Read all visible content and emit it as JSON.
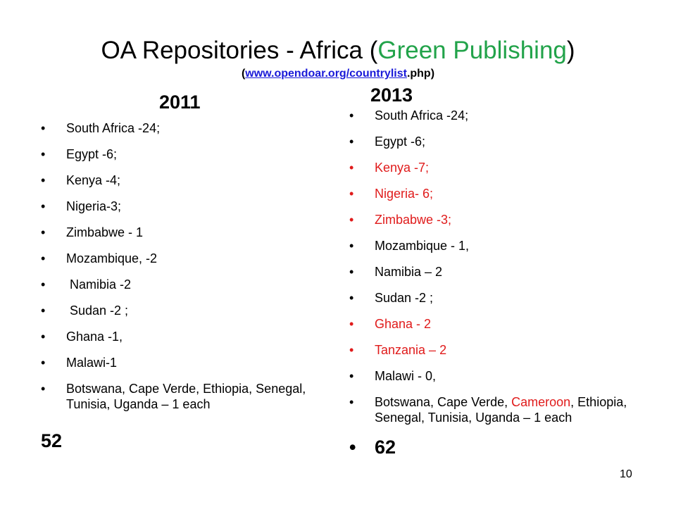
{
  "title": {
    "part1": "OA  Repositories   - Africa (",
    "green": "Green Publishing",
    "part2": ")"
  },
  "subtitle": {
    "open": "(",
    "link": "www.opendoar.org/countrylist",
    "rest": ".php)"
  },
  "col2011": {
    "year": "2011",
    "items": [
      "South Africa -24;",
      "Egypt -6;",
      "Kenya -4;",
      "Nigeria-3;",
      "Zimbabwe  - 1",
      "Mozambique, -2",
      " Namibia -2",
      " Sudan -2 ;",
      "Ghana -1,",
      "Malawi-1",
      "Botswana, Cape Verde, Ethiopia, Senegal, Tunisia, Uganda – 1 each"
    ],
    "total": "52"
  },
  "col2013": {
    "year": "2013",
    "items": [
      "South Africa -24;",
      "Egypt -6;",
      "Kenya -7;",
      "Nigeria- 6;",
      "Zimbabwe -3;",
      "Mozambique - 1,",
      "Namibia – 2",
      "Sudan -2 ;",
      "Ghana - 2",
      "Tanzania – 2",
      "Malawi - 0,"
    ],
    "last_item": {
      "part1": "Botswana, Cape Verde, ",
      "red": "Cameroon",
      "part2": ", Ethiopia, Senegal, Tunisia, Uganda – 1 each"
    },
    "total": "62"
  },
  "page_number": "10",
  "colors": {
    "green": "#22a34a",
    "red": "#e01b1b",
    "link": "#1a1ad8"
  }
}
